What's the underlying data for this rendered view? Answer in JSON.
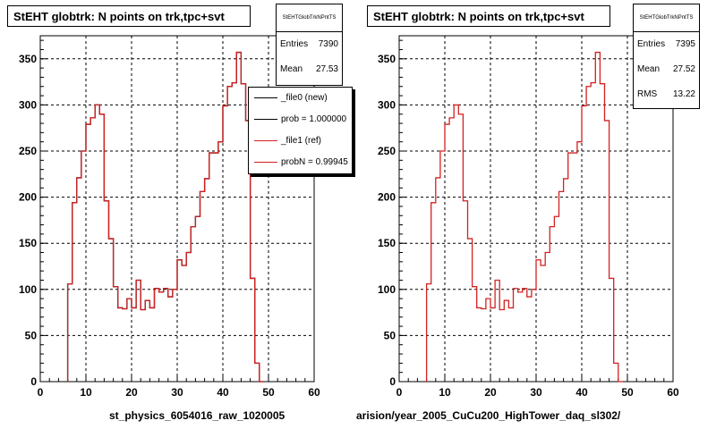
{
  "colors": {
    "new": "#000000",
    "ref": "#d42020",
    "grid": "#000000"
  },
  "footer": "",
  "chart_data": [
    {
      "type": "histogram",
      "title": "StEHT globtrk: N points on trk,tpc+svt",
      "xlabel": "st_physics_6054016_raw_1020005",
      "xlim": [
        0,
        60
      ],
      "ylim": [
        0,
        375
      ],
      "xticks": [
        "0",
        "10",
        "20",
        "30",
        "40",
        "50",
        "60"
      ],
      "yticks": [
        "0",
        "50",
        "100",
        "150",
        "200",
        "250",
        "300",
        "350"
      ],
      "grid": true,
      "bin_edges": [
        6,
        7,
        8,
        9,
        10,
        11,
        12,
        13,
        14,
        15,
        16,
        17,
        18,
        19,
        20,
        21,
        22,
        23,
        24,
        25,
        26,
        27,
        28,
        29,
        30,
        31,
        32,
        33,
        34,
        35,
        36,
        37,
        38,
        39,
        40,
        41,
        42,
        43,
        44,
        45,
        46,
        47,
        48,
        49
      ],
      "stats": {
        "name": "StEHTGlobTrkNPntTS",
        "entries_label": "Entries",
        "entries": "7390",
        "mean_label": "Mean",
        "mean": "27.53"
      },
      "legend": {
        "placement": "top-right",
        "entries": [
          "_file0 (new)",
          "prob = 1.000000",
          "_file1 (ref)",
          "probN = 0.99945"
        ]
      },
      "series": [
        {
          "name": "_file0 (new)",
          "color": "#000000",
          "values": [
            106,
            194,
            221,
            250,
            279,
            286,
            300,
            290,
            196,
            155,
            103,
            80,
            79,
            90,
            80,
            110,
            78,
            88,
            80,
            101,
            97,
            101,
            92,
            100,
            132,
            126,
            140,
            168,
            179,
            206,
            220,
            248,
            248,
            260,
            299,
            320,
            324,
            357,
            323,
            283,
            112,
            20,
            0
          ]
        },
        {
          "name": "_file1 (ref)",
          "color": "#d42020",
          "values": [
            106,
            194,
            221,
            250,
            279,
            286,
            300,
            290,
            196,
            155,
            103,
            80,
            79,
            90,
            80,
            110,
            78,
            88,
            80,
            101,
            97,
            101,
            92,
            100,
            132,
            126,
            140,
            168,
            179,
            206,
            220,
            248,
            248,
            260,
            299,
            320,
            324,
            357,
            323,
            283,
            112,
            20,
            0
          ]
        }
      ]
    },
    {
      "type": "histogram",
      "title": "StEHT globtrk: N points on trk,tpc+svt",
      "xlabel": "arision/year_2005_CuCu200_HighTower_daq_sl302/",
      "xlim": [
        0,
        60
      ],
      "ylim": [
        0,
        375
      ],
      "xticks": [
        "0",
        "10",
        "20",
        "30",
        "40",
        "50",
        "60"
      ],
      "yticks": [
        "0",
        "50",
        "100",
        "150",
        "200",
        "250",
        "300",
        "350"
      ],
      "grid": true,
      "bin_edges": [
        6,
        7,
        8,
        9,
        10,
        11,
        12,
        13,
        14,
        15,
        16,
        17,
        18,
        19,
        20,
        21,
        22,
        23,
        24,
        25,
        26,
        27,
        28,
        29,
        30,
        31,
        32,
        33,
        34,
        35,
        36,
        37,
        38,
        39,
        40,
        41,
        42,
        43,
        44,
        45,
        46,
        47,
        48,
        49
      ],
      "stats": {
        "name": "StEHTGlobTrkNPntTS",
        "entries_label": "Entries",
        "entries": "7395",
        "mean_label": "Mean",
        "mean": "27.52",
        "rms_label": "RMS",
        "rms": "13.22"
      },
      "series": [
        {
          "color": "#d42020",
          "values": [
            106,
            194,
            221,
            250,
            279,
            286,
            300,
            290,
            196,
            155,
            103,
            80,
            79,
            90,
            80,
            110,
            78,
            88,
            80,
            101,
            97,
            101,
            92,
            100,
            132,
            126,
            140,
            168,
            179,
            206,
            220,
            248,
            248,
            260,
            299,
            320,
            324,
            357,
            323,
            283,
            112,
            20,
            0
          ]
        }
      ]
    }
  ]
}
